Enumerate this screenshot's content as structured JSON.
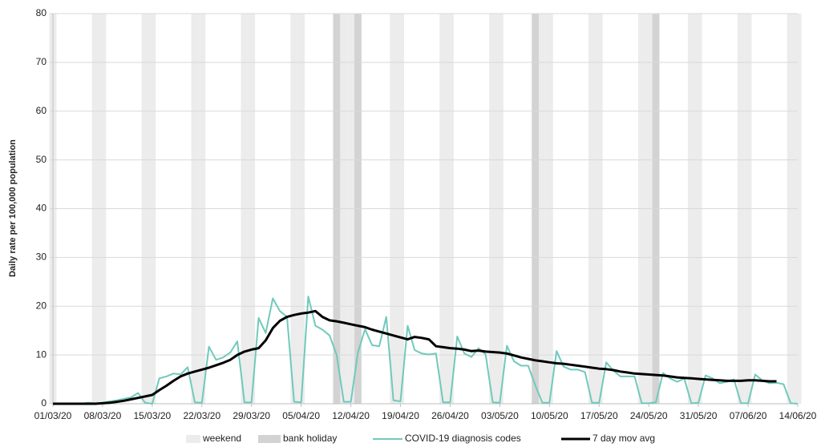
{
  "chart_data": {
    "type": "line",
    "y_label": "Daily rate per 100,000 population",
    "x": [
      "01/03/20",
      "02/03/20",
      "03/03/20",
      "04/03/20",
      "05/03/20",
      "06/03/20",
      "07/03/20",
      "08/03/20",
      "09/03/20",
      "10/03/20",
      "11/03/20",
      "12/03/20",
      "13/03/20",
      "14/03/20",
      "15/03/20",
      "16/03/20",
      "17/03/20",
      "18/03/20",
      "19/03/20",
      "20/03/20",
      "21/03/20",
      "22/03/20",
      "23/03/20",
      "24/03/20",
      "25/03/20",
      "26/03/20",
      "27/03/20",
      "28/03/20",
      "29/03/20",
      "30/03/20",
      "31/03/20",
      "01/04/20",
      "02/04/20",
      "03/04/20",
      "04/04/20",
      "05/04/20",
      "06/04/20",
      "07/04/20",
      "08/04/20",
      "09/04/20",
      "10/04/20",
      "11/04/20",
      "12/04/20",
      "13/04/20",
      "14/04/20",
      "15/04/20",
      "16/04/20",
      "17/04/20",
      "18/04/20",
      "19/04/20",
      "20/04/20",
      "21/04/20",
      "22/04/20",
      "23/04/20",
      "24/04/20",
      "25/04/20",
      "26/04/20",
      "27/04/20",
      "28/04/20",
      "29/04/20",
      "30/04/20",
      "01/05/20",
      "02/05/20",
      "03/05/20",
      "04/05/20",
      "05/05/20",
      "06/05/20",
      "07/05/20",
      "08/05/20",
      "09/05/20",
      "10/05/20",
      "11/05/20",
      "12/05/20",
      "13/05/20",
      "14/05/20",
      "15/05/20",
      "16/05/20",
      "17/05/20",
      "18/05/20",
      "19/05/20",
      "20/05/20",
      "21/05/20",
      "22/05/20",
      "23/05/20",
      "24/05/20",
      "25/05/20",
      "26/05/20",
      "27/05/20",
      "28/05/20",
      "29/05/20",
      "30/05/20",
      "31/05/20",
      "01/06/20",
      "02/06/20",
      "03/06/20",
      "04/06/20",
      "05/06/20",
      "06/06/20",
      "07/06/20",
      "08/06/20",
      "09/06/20",
      "10/06/20",
      "11/06/20",
      "12/06/20",
      "13/06/20",
      "14/06/20"
    ],
    "xticks": [
      "01/03/20",
      "08/03/20",
      "15/03/20",
      "22/03/20",
      "29/03/20",
      "05/04/20",
      "12/04/20",
      "19/04/20",
      "26/04/20",
      "03/05/20",
      "10/05/20",
      "17/05/20",
      "24/05/20",
      "31/05/20",
      "07/06/20",
      "14/06/20"
    ],
    "ylim": [
      0,
      80
    ],
    "yticks": [
      0,
      10,
      20,
      30,
      40,
      50,
      60,
      70,
      80
    ],
    "grid": true,
    "bands": [
      {
        "name": "weekend",
        "color": "#ececec",
        "dates": [
          "01/03/20",
          "07/03/20",
          "08/03/20",
          "14/03/20",
          "15/03/20",
          "21/03/20",
          "22/03/20",
          "28/03/20",
          "29/03/20",
          "04/04/20",
          "05/04/20",
          "11/04/20",
          "12/04/20",
          "18/04/20",
          "19/04/20",
          "25/04/20",
          "26/04/20",
          "02/05/20",
          "03/05/20",
          "09/05/20",
          "10/05/20",
          "16/05/20",
          "17/05/20",
          "23/05/20",
          "24/05/20",
          "30/05/20",
          "31/05/20",
          "06/06/20",
          "07/06/20",
          "13/06/20",
          "14/06/20"
        ]
      },
      {
        "name": "bank holiday",
        "color": "#d3d3d3",
        "dates": [
          "10/04/20",
          "13/04/20",
          "08/05/20",
          "25/05/20"
        ]
      }
    ],
    "series": [
      {
        "name": "COVID-19 diagnosis codes",
        "color": "#6fcabc",
        "width": 2,
        "values": [
          0,
          0,
          0,
          0,
          0,
          0.2,
          0.1,
          0.2,
          0.5,
          0.7,
          1.0,
          1.3,
          2.2,
          0.2,
          0,
          5.2,
          5.6,
          6.2,
          6.0,
          7.5,
          0.3,
          0.2,
          11.7,
          9.0,
          9.5,
          10.5,
          12.8,
          0.3,
          0.3,
          17.6,
          14.5,
          21.6,
          19.0,
          17.8,
          0.4,
          0.3,
          22.0,
          16.0,
          15.2,
          14.0,
          10.0,
          0.4,
          0.4,
          10.5,
          15.3,
          12.0,
          11.8,
          17.8,
          0.7,
          0.5,
          16.0,
          11.0,
          10.3,
          10.1,
          10.3,
          0.3,
          0.3,
          13.8,
          10.3,
          9.6,
          11.4,
          10.1,
          0.3,
          0.2,
          11.9,
          8.7,
          7.8,
          7.8,
          3.8,
          0.2,
          0.2,
          10.8,
          7.6,
          7.0,
          7.0,
          6.5,
          0.2,
          0.2,
          8.5,
          6.8,
          5.6,
          5.6,
          5.6,
          0.1,
          0.1,
          0.3,
          6.3,
          5.2,
          4.5,
          5.2,
          0.1,
          0.2,
          5.8,
          5.2,
          4.2,
          4.5,
          5.0,
          0.1,
          0.1,
          6.0,
          4.8,
          4.2,
          4.3,
          4.0,
          0.1,
          0
        ]
      },
      {
        "name": "7 day mov avg",
        "color": "#000000",
        "width": 3,
        "values": [
          0,
          0,
          0,
          0,
          0,
          0,
          0,
          0.1,
          0.2,
          0.4,
          0.6,
          0.9,
          1.2,
          1.5,
          1.8,
          2.8,
          3.7,
          4.7,
          5.6,
          6.2,
          6.6,
          7.0,
          7.4,
          7.9,
          8.4,
          9.0,
          10.0,
          10.7,
          11.1,
          11.4,
          13.0,
          15.5,
          17.0,
          17.8,
          18.2,
          18.5,
          18.7,
          19.0,
          17.8,
          17.1,
          16.9,
          16.6,
          16.3,
          16.0,
          15.7,
          15.2,
          14.8,
          14.4,
          14.0,
          13.6,
          13.2,
          13.7,
          13.5,
          13.2,
          11.8,
          11.6,
          11.4,
          11.3,
          11.1,
          10.8,
          10.9,
          10.7,
          10.6,
          10.5,
          10.3,
          9.9,
          9.5,
          9.2,
          8.9,
          8.7,
          8.5,
          8.3,
          8.2,
          8.0,
          7.8,
          7.6,
          7.4,
          7.2,
          7.1,
          6.9,
          6.6,
          6.4,
          6.2,
          6.1,
          6.0,
          5.9,
          5.8,
          5.6,
          5.4,
          5.3,
          5.2,
          5.1,
          5.0,
          4.9,
          4.8,
          4.7,
          4.7,
          4.7,
          4.8,
          4.8,
          4.7,
          4.6,
          4.6,
          null,
          null,
          null
        ]
      }
    ]
  }
}
